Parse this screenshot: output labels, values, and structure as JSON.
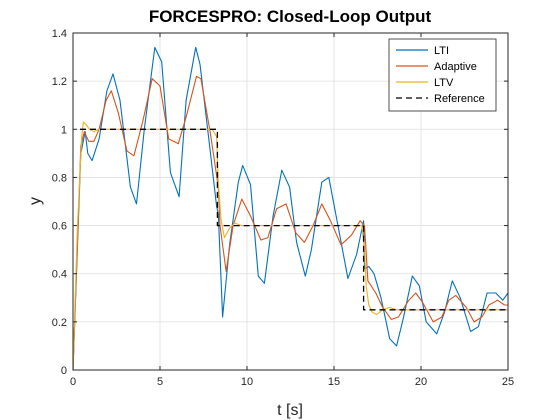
{
  "chart_data": {
    "type": "line",
    "title": "FORCESPRO: Closed-Loop Output",
    "xlabel": "t [s]",
    "ylabel": "y",
    "xlim": [
      0,
      25
    ],
    "ylim": [
      0,
      1.4
    ],
    "xticks": [
      0,
      5,
      10,
      15,
      20,
      25
    ],
    "yticks": [
      0,
      0.2,
      0.4,
      0.6,
      0.8,
      1,
      1.2,
      1.4
    ],
    "xtick_labels": [
      "0",
      "5",
      "10",
      "15",
      "20",
      "25"
    ],
    "ytick_labels": [
      "0",
      "0.2",
      "0.4",
      "0.6",
      "0.8",
      "1",
      "1.2",
      "1.4"
    ],
    "grid": true,
    "legend_position": "top-right",
    "series": [
      {
        "name": "LTI",
        "color": "#0072BD",
        "x": [
          0,
          0.45,
          0.7,
          0.85,
          1.1,
          1.5,
          1.95,
          2.3,
          2.7,
          3.3,
          3.65,
          4.1,
          4.7,
          5.1,
          5.6,
          6.1,
          6.5,
          7.05,
          7.3,
          7.9,
          8.25,
          8.35,
          8.6,
          9.0,
          9.5,
          9.75,
          10.2,
          10.65,
          11.0,
          11.5,
          12.0,
          12.45,
          12.85,
          13.35,
          13.7,
          14.3,
          14.7,
          15.2,
          15.8,
          16.3,
          16.7,
          16.75,
          17.0,
          17.3,
          17.7,
          18.2,
          18.6,
          19.0,
          19.5,
          19.9,
          20.3,
          20.9,
          21.35,
          21.8,
          22.25,
          22.85,
          23.3,
          23.8,
          24.3,
          24.7,
          25.0
        ],
        "y": [
          0,
          0.9,
          0.99,
          0.9,
          0.87,
          0.96,
          1.16,
          1.23,
          1.12,
          0.76,
          0.69,
          1.0,
          1.34,
          1.28,
          0.82,
          0.72,
          1.12,
          1.34,
          1.27,
          0.9,
          0.68,
          0.65,
          0.22,
          0.52,
          0.78,
          0.85,
          0.77,
          0.39,
          0.36,
          0.64,
          0.83,
          0.76,
          0.53,
          0.39,
          0.5,
          0.78,
          0.8,
          0.61,
          0.38,
          0.48,
          0.62,
          0.42,
          0.43,
          0.4,
          0.3,
          0.13,
          0.1,
          0.22,
          0.39,
          0.35,
          0.2,
          0.15,
          0.24,
          0.37,
          0.3,
          0.16,
          0.18,
          0.32,
          0.32,
          0.29,
          0.32
        ]
      },
      {
        "name": "Adaptive",
        "color": "#D95319",
        "x": [
          0,
          0.45,
          0.65,
          0.9,
          1.2,
          1.5,
          1.9,
          2.2,
          2.6,
          3.1,
          3.5,
          4.0,
          4.55,
          5.0,
          5.5,
          6.05,
          6.5,
          7.1,
          7.35,
          7.9,
          8.35,
          8.45,
          8.8,
          9.2,
          9.7,
          10.2,
          10.8,
          11.2,
          11.7,
          12.25,
          12.8,
          13.3,
          13.8,
          14.3,
          14.8,
          15.4,
          16.0,
          16.5,
          16.75,
          16.95,
          17.4,
          17.8,
          18.3,
          18.7,
          19.3,
          19.7,
          20.1,
          20.7,
          21.2,
          21.6,
          22.0,
          22.6,
          23.05,
          23.5,
          23.9,
          24.4,
          24.8,
          25.0
        ],
        "y": [
          0,
          0.93,
          0.99,
          0.95,
          0.95,
          1.0,
          1.12,
          1.16,
          1.07,
          0.91,
          0.89,
          1.03,
          1.21,
          1.18,
          0.96,
          0.94,
          1.05,
          1.22,
          1.21,
          0.98,
          0.76,
          0.6,
          0.41,
          0.6,
          0.71,
          0.64,
          0.54,
          0.55,
          0.67,
          0.69,
          0.57,
          0.53,
          0.6,
          0.69,
          0.62,
          0.52,
          0.56,
          0.62,
          0.6,
          0.37,
          0.32,
          0.26,
          0.21,
          0.22,
          0.29,
          0.32,
          0.28,
          0.2,
          0.22,
          0.29,
          0.31,
          0.26,
          0.2,
          0.22,
          0.27,
          0.29,
          0.27,
          0.27
        ]
      },
      {
        "name": "LTV",
        "color": "#EDB120",
        "x": [
          0,
          0.25,
          0.5,
          0.6,
          0.75,
          0.95,
          1.2,
          1.5,
          2.0,
          3.0,
          4.0,
          5.0,
          6.0,
          7.0,
          8.0,
          8.25,
          8.35,
          8.5,
          8.7,
          9.0,
          9.3,
          9.7,
          10.5,
          12.0,
          14.0,
          16.0,
          16.6,
          16.75,
          16.85,
          17.0,
          17.2,
          17.45,
          17.8,
          18.2,
          18.6,
          19.2,
          20.0,
          22.0,
          25.0
        ],
        "y": [
          0,
          0.58,
          0.97,
          1.03,
          1.02,
          1.0,
          0.99,
          1.0,
          1.0,
          1.0,
          1.0,
          1.0,
          1.0,
          1.0,
          1.0,
          0.97,
          0.78,
          0.63,
          0.55,
          0.59,
          0.61,
          0.6,
          0.6,
          0.6,
          0.6,
          0.6,
          0.6,
          0.5,
          0.35,
          0.27,
          0.24,
          0.23,
          0.25,
          0.26,
          0.25,
          0.25,
          0.25,
          0.25,
          0.25
        ]
      },
      {
        "name": "Reference",
        "color": "#000000",
        "dash": "6,4",
        "x": [
          0.4,
          8.3,
          8.3,
          16.7,
          16.7,
          25.0
        ],
        "y": [
          1.0,
          1.0,
          0.6,
          0.6,
          0.25,
          0.25
        ]
      }
    ]
  }
}
